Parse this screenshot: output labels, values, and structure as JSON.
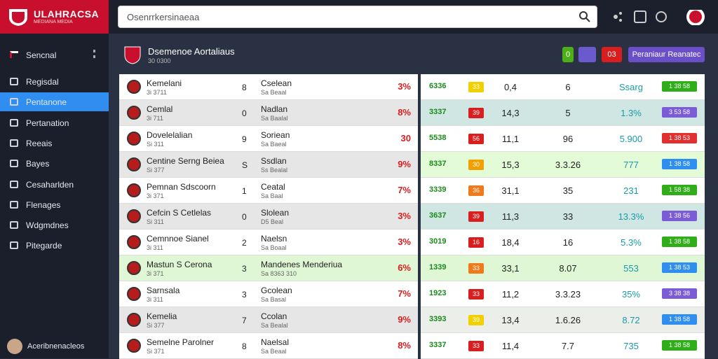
{
  "header": {
    "logo_title": "ULAHRACSA",
    "logo_subtitle": "MEDIANA MEDIA",
    "search_placeholder": "Osenrrkersinaeaa"
  },
  "sidebar": {
    "top_item": "Sencnal",
    "items": [
      "Regisdal",
      "Pentanone",
      "Pertanation",
      "Reeais",
      "Bayes",
      "Cesaharlden",
      "Flenages",
      "Wdgmdnes",
      "Pitegarde"
    ],
    "user": "Aceribnenacleos"
  },
  "main": {
    "title": "Dsemenoe Aortaliaus",
    "subtitle": "30 0300",
    "buttons": [
      "0",
      "03",
      "Peraniaur Reanatec"
    ]
  },
  "table": {
    "rows": [
      {
        "name": "Kemelani",
        "sub": "3i 3711",
        "num": "8",
        "team": "Cselean",
        "team_sub": "Sa Beaal",
        "pct": "3%",
        "badge1": "6336",
        "badge2": "33",
        "v1": "0,4",
        "v2": "6",
        "v3": "Ssarg",
        "badge3": "1 38 58"
      },
      {
        "name": "Cemlal",
        "sub": "3i 711",
        "num": "0",
        "team": "Nadlan",
        "team_sub": "Sa Baalal",
        "pct": "8%",
        "badge1": "3337",
        "badge2": "39",
        "v1": "14,3",
        "v2": "5",
        "v3": "1.3%",
        "badge3": "3 53 58"
      },
      {
        "name": "Dovelelalian",
        "sub": "Si 311",
        "num": "9",
        "team": "Soriean",
        "team_sub": "Sa Baeal",
        "pct": "30",
        "badge1": "5538",
        "badge2": "56",
        "v1": "11,1",
        "v2": "96",
        "v3": "5.900",
        "badge3": "1 38 53"
      },
      {
        "name": "Centine Serng Beiea",
        "sub": "Si 377",
        "num": "S",
        "team": "Ssdlan",
        "team_sub": "Ss Bealal",
        "pct": "9%",
        "badge1": "8337",
        "badge2": "30",
        "v1": "15,3",
        "v2": "3.3.26",
        "v3": "777",
        "badge3": "1 38 58"
      },
      {
        "name": "Pemnan Sdscoorn",
        "sub": "3i 371",
        "num": "1",
        "team": "Ceatal",
        "team_sub": "Sa Baal",
        "pct": "7%",
        "badge1": "3339",
        "badge2": "36",
        "v1": "31,1",
        "v2": "35",
        "v3": "231",
        "badge3": "1 58 38"
      },
      {
        "name": "Cefcin S Cetlelas",
        "sub": "Si 311",
        "num": "0",
        "team": "Slolean",
        "team_sub": "D5 Beal",
        "pct": "3%",
        "badge1": "3637",
        "badge2": "39",
        "v1": "11,3",
        "v2": "33",
        "v3": "13.3%",
        "badge3": "1 38 56"
      },
      {
        "name": "Cemnnoe Sianel",
        "sub": "3i 311",
        "num": "2",
        "team": "Naelsn",
        "team_sub": "Sa Boaal",
        "pct": "3%",
        "badge1": "3019",
        "badge2": "16",
        "v1": "18,4",
        "v2": "16",
        "v3": "5.3%",
        "badge3": "1 38 58"
      },
      {
        "name": "Mastun S Cerona",
        "sub": "3i 371",
        "num": "3",
        "team": "Mandenes Menderiua",
        "team_sub": "Sa 8363 310",
        "pct": "6%",
        "badge1": "1339",
        "badge2": "33",
        "v1": "33,1",
        "v2": "8.07",
        "v3": "553",
        "badge3": "1 38 53"
      },
      {
        "name": "Sarnsala",
        "sub": "3i 311",
        "num": "3",
        "team": "Gcolean",
        "team_sub": "Sa Basal",
        "pct": "7%",
        "badge1": "1923",
        "badge2": "33",
        "v1": "11,2",
        "v2": "3.3.23",
        "v3": "35%",
        "badge3": "3 38 38"
      },
      {
        "name": "Kemelia",
        "sub": "Si 377",
        "num": "7",
        "team": "Ccolan",
        "team_sub": "Sa Bealal",
        "pct": "9%",
        "badge1": "3393",
        "badge2": "39",
        "v1": "13,4",
        "v2": "1.6.26",
        "v3": "8.72",
        "badge3": "1 38 58"
      },
      {
        "name": "Semelne Parolner",
        "sub": "Si 371",
        "num": "8",
        "team": "Naelsal",
        "team_sub": "Sa Beaal",
        "pct": "8%",
        "badge1": "3337",
        "badge2": "33",
        "v1": "11,4",
        "v2": "7.7",
        "v3": "735",
        "badge3": "1 38 58"
      }
    ]
  }
}
